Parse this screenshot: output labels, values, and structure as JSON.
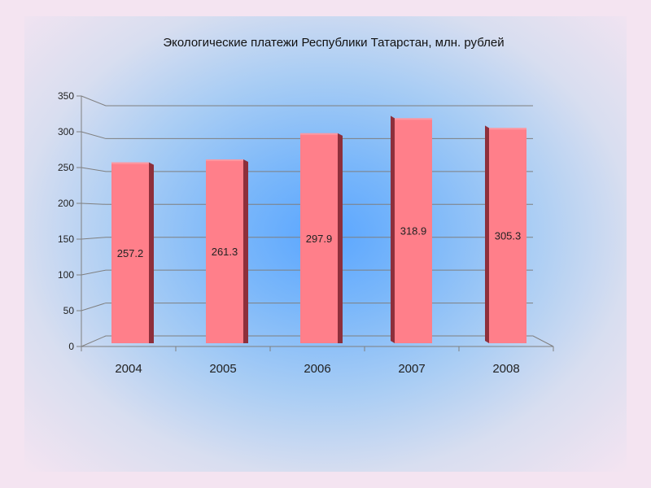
{
  "colors": {
    "bar_front": "#ff7f8a",
    "bar_side": "#8e2f3b",
    "grid": "#7f7f7f",
    "text": "#222222"
  },
  "chart_data": {
    "type": "bar",
    "title": "Экологические платежи Республики Татарстан, млн. рублей",
    "categories": [
      "2004",
      "2005",
      "2006",
      "2007",
      "2008"
    ],
    "values": [
      257.2,
      261.3,
      297.9,
      318.9,
      305.3
    ],
    "data_labels": [
      "257.2",
      "261.3",
      "297.9",
      "318.9",
      "305.3"
    ],
    "yticks": [
      "0",
      "50",
      "100",
      "150",
      "200",
      "250",
      "300",
      "350"
    ],
    "ylim": [
      0,
      350
    ],
    "xlabel": "",
    "ylabel": "",
    "grid": true,
    "legend": false,
    "style": "3d-bar"
  }
}
